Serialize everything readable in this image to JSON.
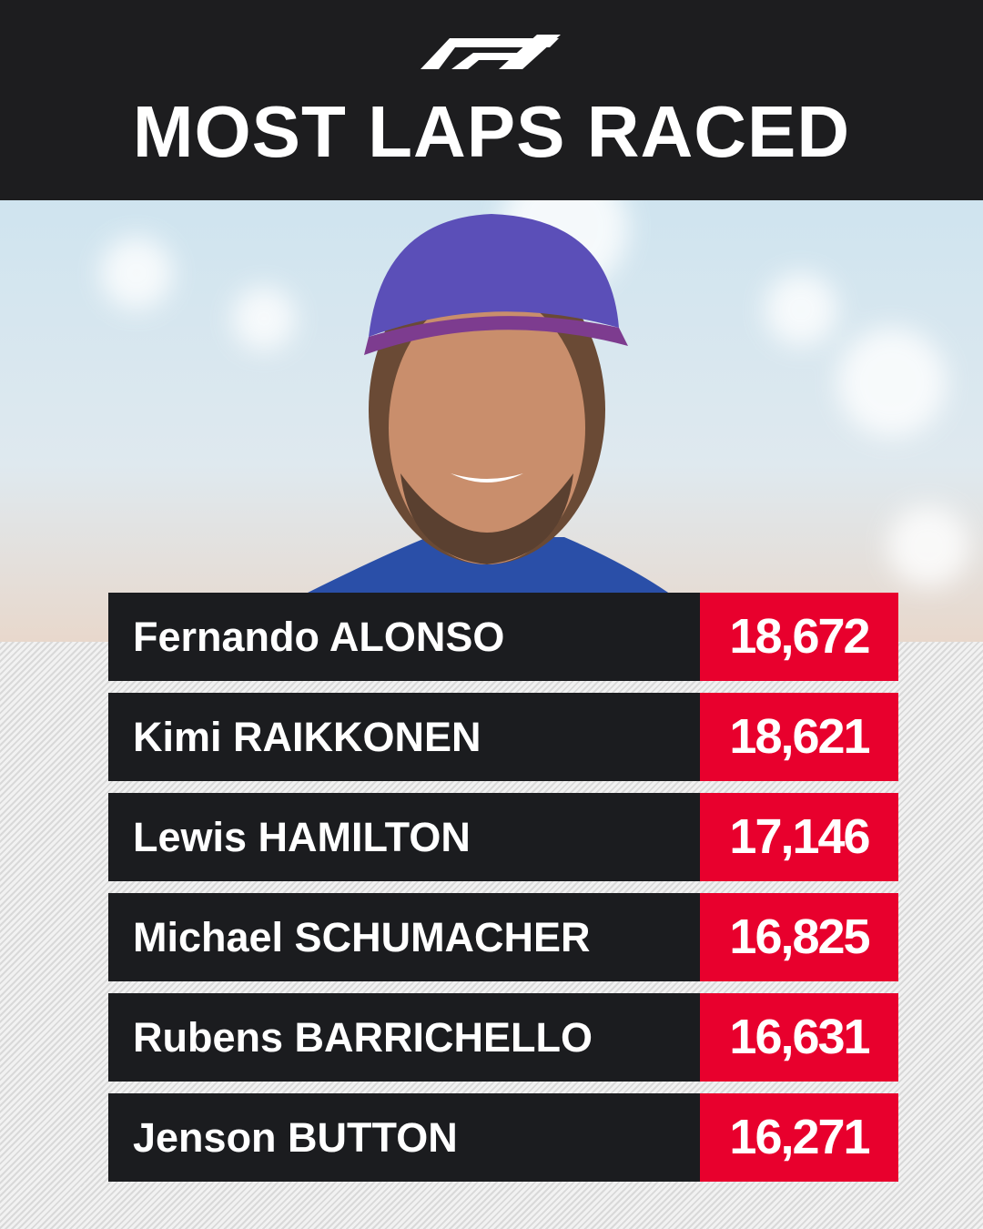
{
  "header": {
    "title": "MOST LAPS RACED"
  },
  "table": {
    "rows": [
      {
        "driver": "Fernando ALONSO",
        "laps": "18,672"
      },
      {
        "driver": "Kimi RAIKKONEN",
        "laps": "18,621"
      },
      {
        "driver": "Lewis HAMILTON",
        "laps": "17,146"
      },
      {
        "driver": "Michael SCHUMACHER",
        "laps": "16,825"
      },
      {
        "driver": "Rubens BARRICHELLO",
        "laps": "16,631"
      },
      {
        "driver": "Jenson BUTTON",
        "laps": "16,271"
      }
    ]
  }
}
